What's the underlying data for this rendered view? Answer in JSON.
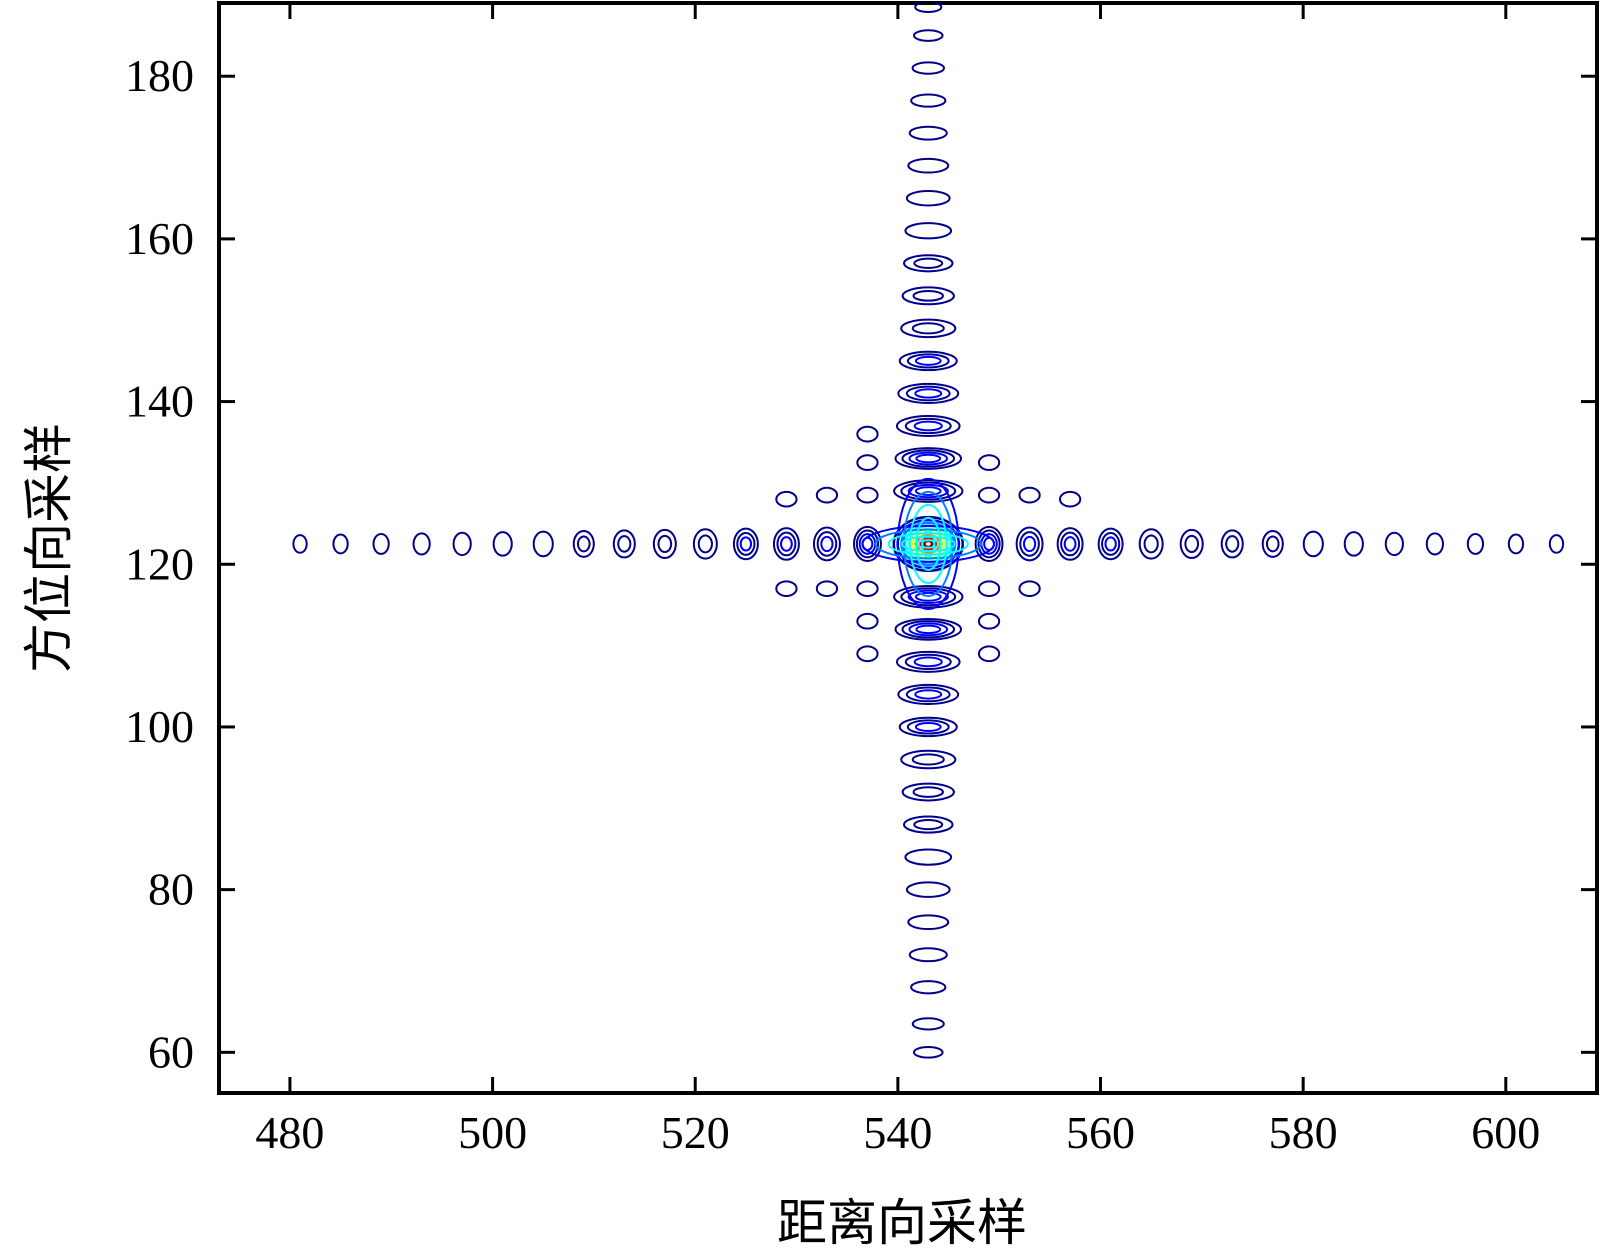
{
  "chart_data": {
    "type": "contour",
    "title": "",
    "xlabel": "距离向采样",
    "ylabel": "方位向采样",
    "xlim": [
      473,
      609
    ],
    "ylim": [
      55,
      189
    ],
    "xticks": [
      "480",
      "500",
      "520",
      "540",
      "560",
      "580",
      "600"
    ],
    "yticks": [
      "60",
      "80",
      "100",
      "120",
      "140",
      "160",
      "180"
    ],
    "grid": false,
    "legend": "none",
    "peak": {
      "x": 543,
      "y": 122.5
    },
    "colormap": [
      "#00008f",
      "#0000ff",
      "#0080ff",
      "#00ffff",
      "#80ff80",
      "#ffff00",
      "#ff8000",
      "#ff0000",
      "#800000"
    ],
    "range_sidelobes_x": [
      481,
      485,
      489,
      493,
      497,
      501,
      505,
      509,
      513,
      517,
      521,
      525,
      529,
      533,
      537,
      549,
      553,
      557,
      561,
      565,
      569,
      573,
      577,
      581,
      585,
      589,
      593,
      597,
      601,
      605
    ],
    "azimuth_sidelobes_y": [
      60,
      63.5,
      68,
      72,
      76,
      80,
      84,
      88,
      92,
      96,
      100,
      104,
      108,
      112,
      116,
      129,
      133,
      137,
      141,
      145,
      149,
      153,
      157,
      161,
      165,
      169,
      173,
      177,
      181,
      185,
      188.5
    ],
    "diagonal_sidelobes": [
      {
        "x": 529,
        "y": 128
      },
      {
        "x": 533,
        "y": 128.5
      },
      {
        "x": 537,
        "y": 128.5
      },
      {
        "x": 549,
        "y": 128.5
      },
      {
        "x": 553,
        "y": 128.5
      },
      {
        "x": 557,
        "y": 128
      },
      {
        "x": 537,
        "y": 132.5
      },
      {
        "x": 549,
        "y": 132.5
      },
      {
        "x": 537,
        "y": 136
      },
      {
        "x": 529,
        "y": 117
      },
      {
        "x": 533,
        "y": 117
      },
      {
        "x": 537,
        "y": 117
      },
      {
        "x": 549,
        "y": 117
      },
      {
        "x": 553,
        "y": 117
      },
      {
        "x": 537,
        "y": 113
      },
      {
        "x": 549,
        "y": 113
      },
      {
        "x": 537,
        "y": 109
      },
      {
        "x": 549,
        "y": 109
      }
    ]
  }
}
